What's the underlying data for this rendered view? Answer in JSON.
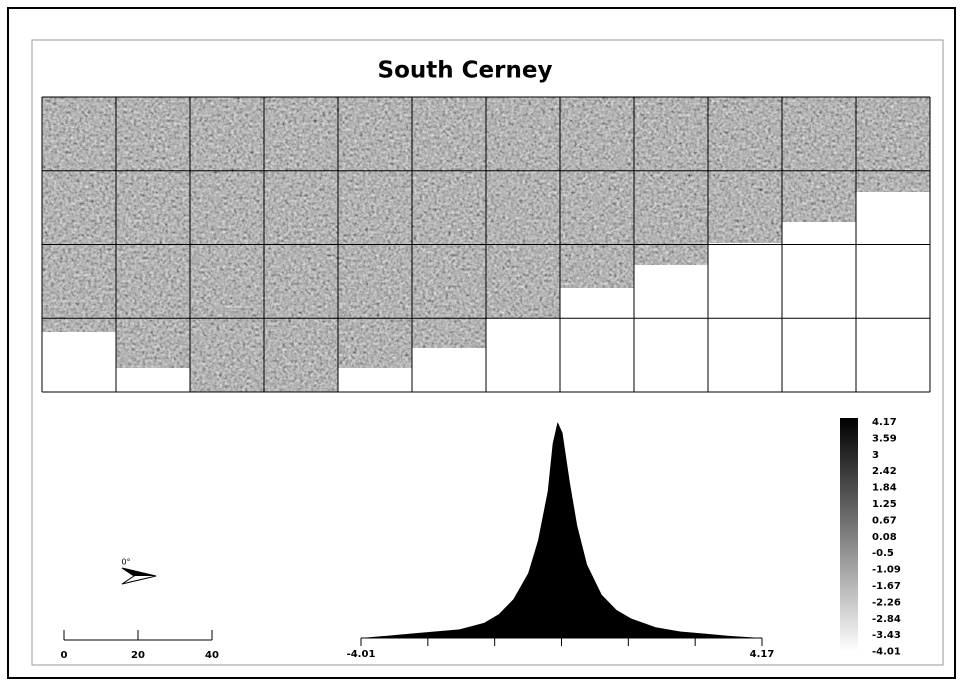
{
  "title": "South Cerney",
  "north_arrow": {
    "label": "0°"
  },
  "scale_bar": {
    "labels": [
      0,
      20,
      40
    ]
  },
  "legend": {
    "labels": [
      4.17,
      3.59,
      3,
      2.42,
      1.84,
      1.25,
      0.67,
      0.08,
      -0.5,
      -1.09,
      -1.67,
      -2.26,
      -2.84,
      -3.43,
      -4.01
    ]
  },
  "histogram": {
    "type": "area",
    "x": [
      -4.01,
      -3.5,
      -3,
      -2.5,
      -2,
      -1.5,
      -1.2,
      -0.9,
      -0.6,
      -0.4,
      -0.2,
      -0.1,
      0,
      0.1,
      0.25,
      0.4,
      0.6,
      0.9,
      1.2,
      1.5,
      2,
      2.5,
      3,
      3.5,
      4.17
    ],
    "counts": [
      0,
      1,
      2,
      3,
      4,
      7,
      11,
      18,
      30,
      45,
      68,
      90,
      100,
      95,
      72,
      52,
      34,
      20,
      13,
      9,
      5,
      3,
      2,
      1,
      0
    ],
    "xlim": [
      -4.01,
      4.17
    ],
    "ylim": [
      0,
      100
    ],
    "xticks": [
      -4.01,
      4.17
    ],
    "color": "#000000"
  }
}
